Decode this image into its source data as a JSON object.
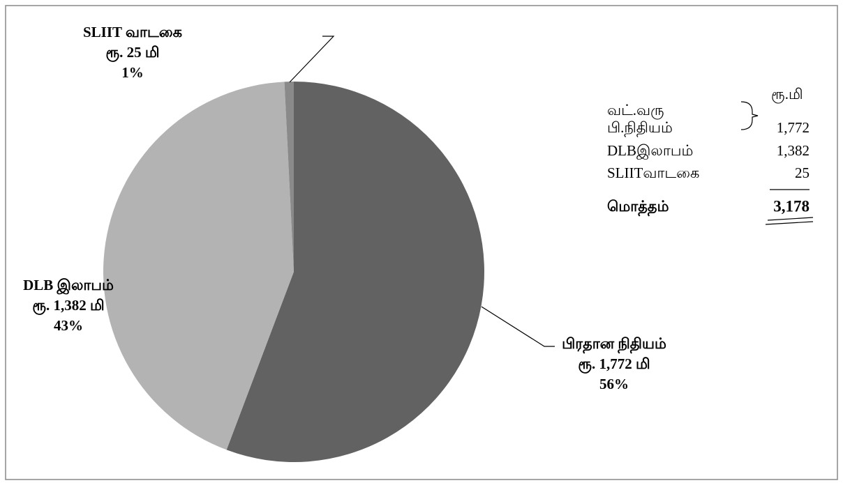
{
  "chart_data": {
    "type": "pie",
    "categories": [
      "பிரதான நிதியம்",
      "DLB இலாபம்",
      "SLIIT வாடகை"
    ],
    "values": [
      1772,
      1382,
      25
    ],
    "value_labels": [
      "ரூ. 1,772 மி",
      "ரூ. 1,382 மி",
      "ரூ. 25 மி"
    ],
    "percent_labels": [
      "56%",
      "43%",
      "1%"
    ],
    "colors": [
      "#626262",
      "#b3b3b3",
      "#8a8a8a"
    ]
  },
  "table": {
    "unit": "ரூ.மி",
    "rows": [
      {
        "label": [
          "வட்.வரு",
          "பி.நிதியம்"
        ],
        "value": "1,772"
      },
      {
        "label": [
          "DLBஇலாபம்"
        ],
        "value": "1,382"
      },
      {
        "label": [
          "SLIITவாடகை"
        ],
        "value": "25"
      }
    ],
    "total": {
      "label": "மொத்தம்",
      "value": "3,178"
    }
  }
}
